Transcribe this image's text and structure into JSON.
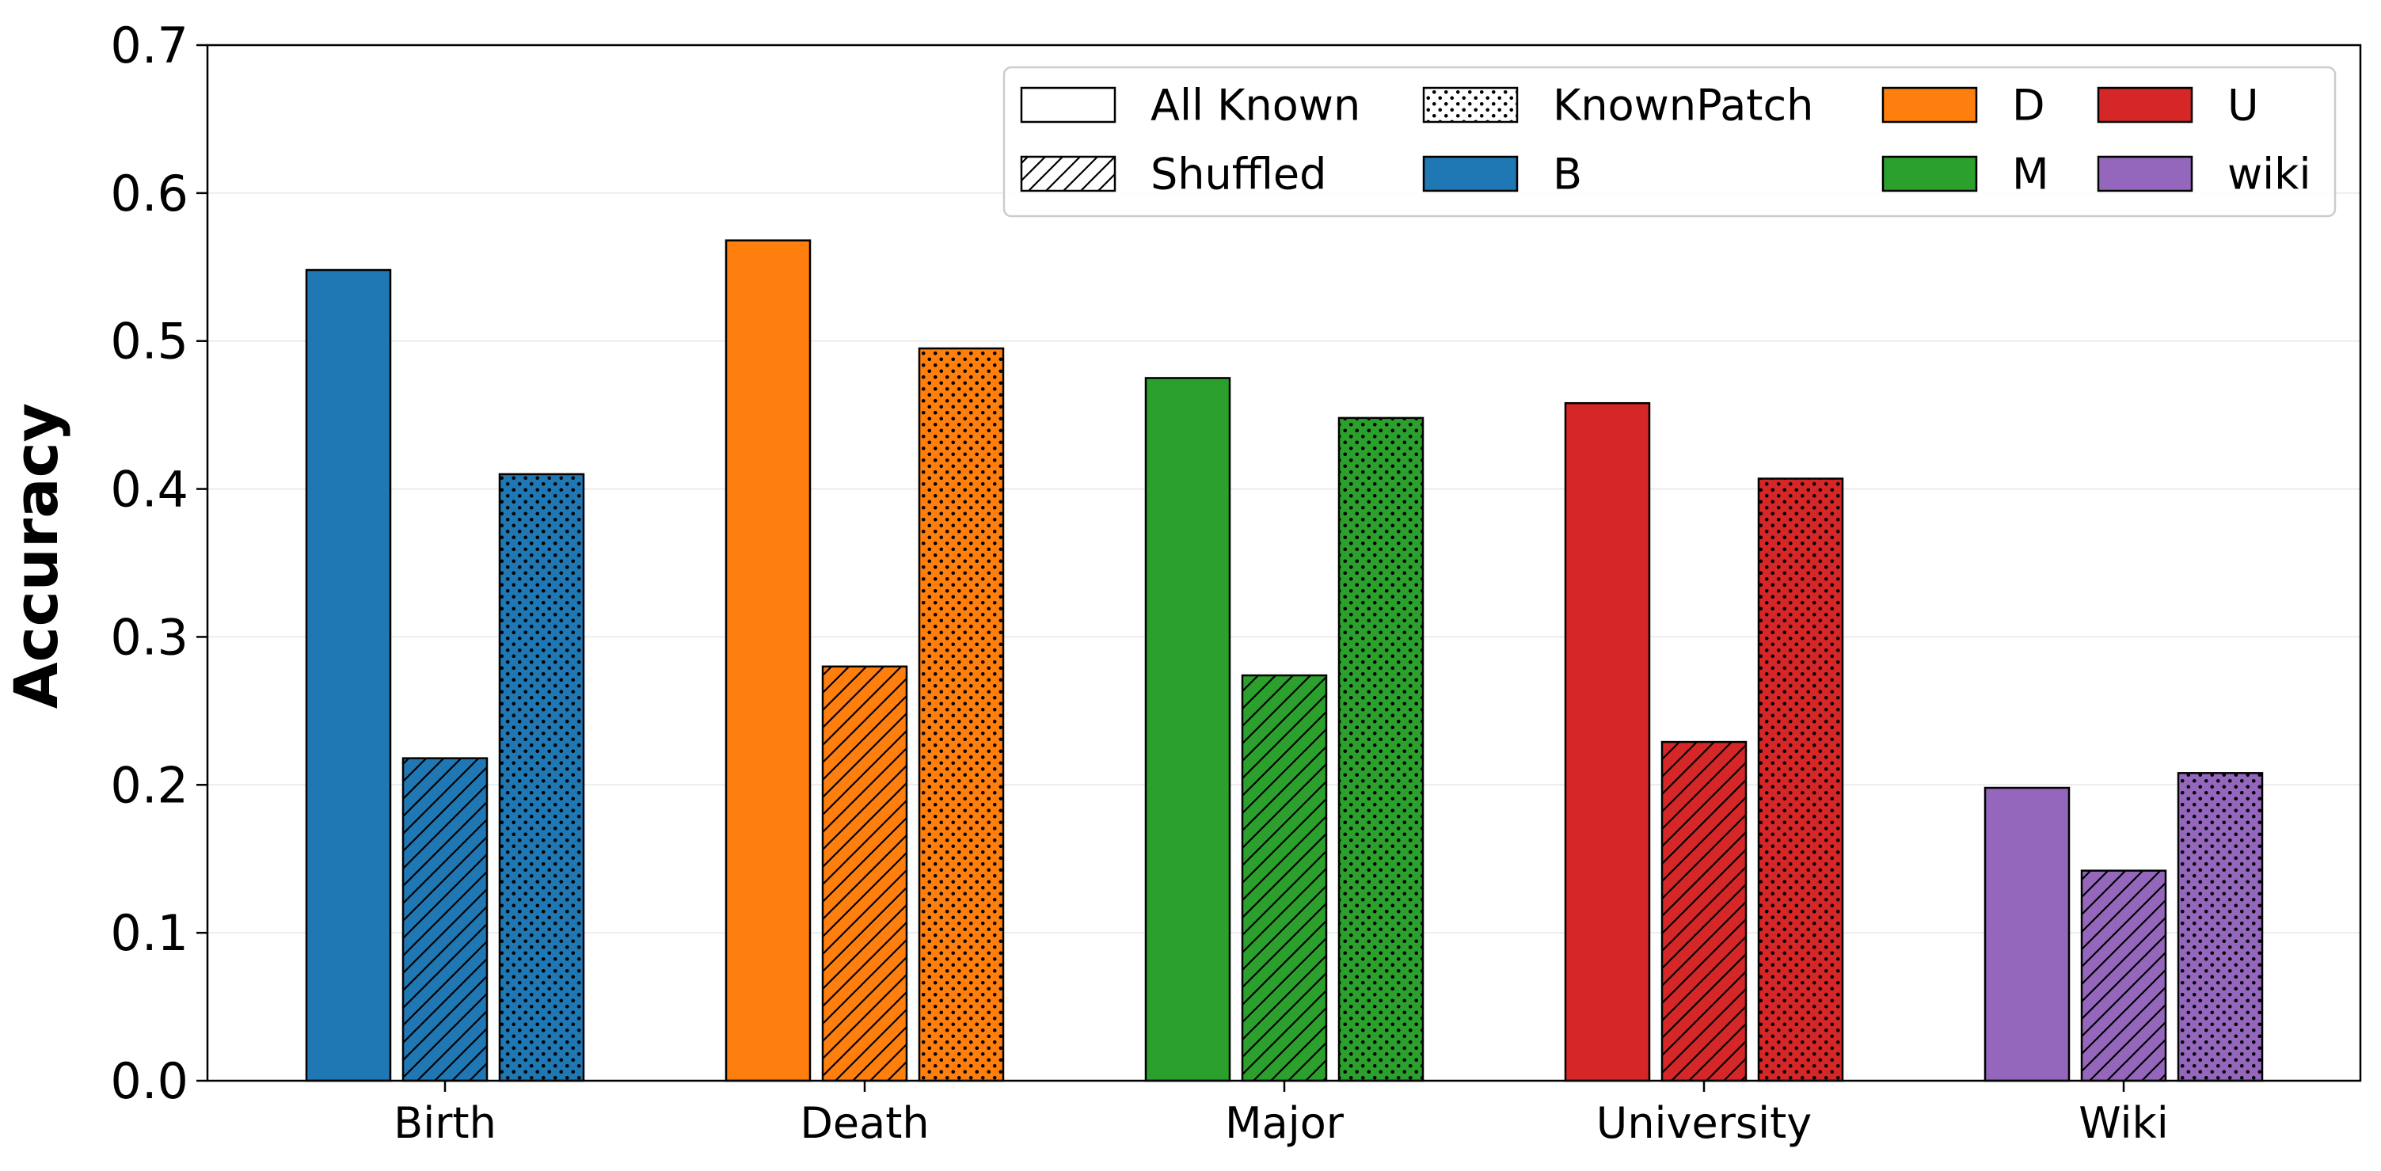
{
  "chart_data": {
    "type": "bar",
    "title": "",
    "xlabel": "",
    "ylabel": "Accuracy",
    "ylim": [
      0,
      0.7
    ],
    "yticks": [
      "0.0",
      "0.1",
      "0.2",
      "0.3",
      "0.4",
      "0.5",
      "0.6",
      "0.7"
    ],
    "grid": "horizontal, light",
    "categories": [
      "Birth",
      "Death",
      "Major",
      "University",
      "Wiki"
    ],
    "category_colors": [
      "#1f77b4",
      "#ff7f0e",
      "#2ca02c",
      "#d62728",
      "#9467bd"
    ],
    "series": [
      {
        "name": "All Known",
        "pattern": "solid",
        "values": [
          0.548,
          0.568,
          0.475,
          0.458,
          0.198
        ]
      },
      {
        "name": "Shuffled",
        "pattern": "hatch",
        "values": [
          0.218,
          0.28,
          0.274,
          0.229,
          0.142
        ]
      },
      {
        "name": "KnownPatch",
        "pattern": "dots",
        "values": [
          0.41,
          0.495,
          0.448,
          0.407,
          0.208
        ]
      }
    ],
    "legend": {
      "placement": "top-right",
      "entries": [
        {
          "label": "All Known",
          "swatch": "solid-white"
        },
        {
          "label": "Shuffled",
          "swatch": "hatch"
        },
        {
          "label": "KnownPatch",
          "swatch": "dots"
        },
        {
          "label": "B",
          "color": "#1f77b4"
        },
        {
          "label": "D",
          "color": "#ff7f0e"
        },
        {
          "label": "M",
          "color": "#2ca02c"
        },
        {
          "label": "U",
          "color": "#d62728"
        },
        {
          "label": "wiki",
          "color": "#9467bd"
        }
      ]
    }
  }
}
